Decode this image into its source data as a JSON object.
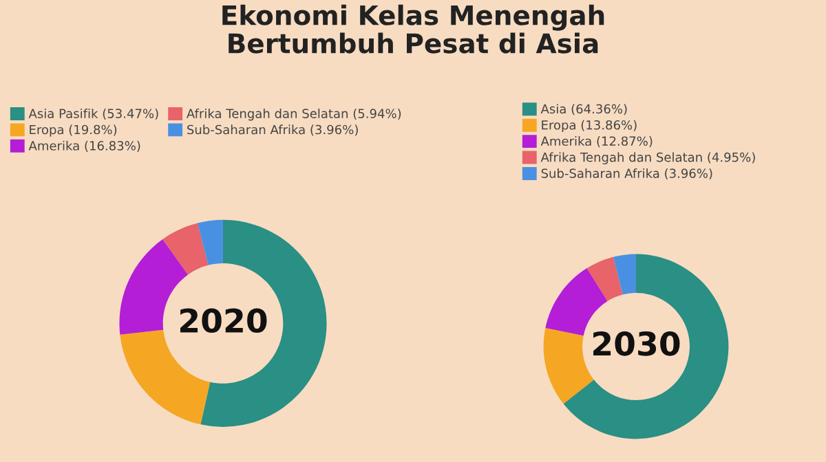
{
  "chart_data": [
    {
      "type": "donut",
      "title": "Ekonomi Kelas Menengah\nBertumbuh Pesat di Asia",
      "annotations": [
        "2020"
      ],
      "legend": "top",
      "categories": [
        "Asia Pasifik (53.47%)",
        "Eropa (19.8%)",
        "Amerika (16.83%)",
        "Afrika Tengah dan Selatan (5.94%)",
        "Sub-Saharan Afrika (3.96%)"
      ],
      "values": [
        53.47,
        19.8,
        16.83,
        5.94,
        3.96
      ],
      "colors": [
        "#2a8f84",
        "#f5a623",
        "#b41ed6",
        "#e8636a",
        "#4a90e2"
      ]
    },
    {
      "type": "donut",
      "annotations": [
        "2030"
      ],
      "legend": "top",
      "categories": [
        "Asia (64.36%)",
        "Eropa (13.86%)",
        "Amerika (12.87%)",
        "Afrika Tengah dan Selatan (4.95%)",
        "Sub-Saharan Afrika (3.96%)"
      ],
      "values": [
        64.36,
        13.86,
        12.87,
        4.95,
        3.96
      ],
      "colors": [
        "#2a8f84",
        "#f5a623",
        "#b41ed6",
        "#e8636a",
        "#4a90e2"
      ]
    }
  ]
}
